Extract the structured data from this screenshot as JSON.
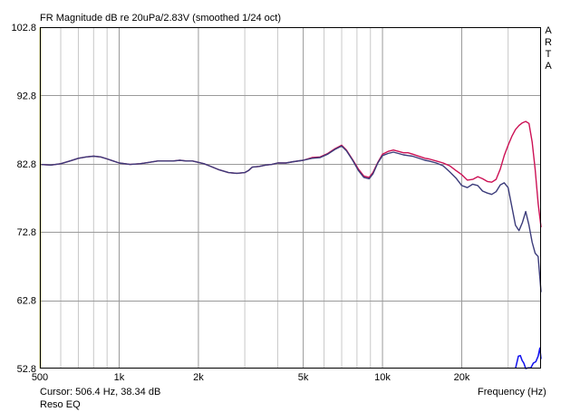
{
  "header": {
    "title": "FR Magnitude dB re 20uPa/2.83V (smoothed 1/24 oct)",
    "brand_letters": [
      "A",
      "R",
      "T",
      "A"
    ]
  },
  "footer": {
    "cursor_readout": "Cursor: 506.4 Hz, 38.34 dB",
    "note": "Reso EQ",
    "xlabel": "Frequency (Hz)"
  },
  "colors": {
    "background": "#ffffff",
    "grid": "#c8c8c8",
    "axis": "#000000",
    "series_red": "#cc1155",
    "series_navy": "#3b3b7a",
    "series_blue": "#1010ee",
    "left_edge": "#c8c800"
  },
  "chart_data": {
    "type": "line",
    "title": "FR Magnitude dB re 20uPa/2.83V (smoothed 1/24 oct)",
    "xlabel": "Frequency (Hz)",
    "ylabel": "",
    "x_scale": "log",
    "xlim": [
      500,
      40000
    ],
    "ylim": [
      52.8,
      102.8
    ],
    "grid": true,
    "x_ticks": [
      {
        "value": 500,
        "label": "500"
      },
      {
        "value": 1000,
        "label": "1k"
      },
      {
        "value": 2000,
        "label": "2k"
      },
      {
        "value": 5000,
        "label": "5k"
      },
      {
        "value": 10000,
        "label": "10k"
      },
      {
        "value": 20000,
        "label": "20k"
      }
    ],
    "y_ticks": [
      {
        "value": 102.8,
        "label": "102.8"
      },
      {
        "value": 92.8,
        "label": "92.8"
      },
      {
        "value": 82.8,
        "label": "82.8"
      },
      {
        "value": 72.8,
        "label": "72.8"
      },
      {
        "value": 62.8,
        "label": "62.8"
      },
      {
        "value": 52.8,
        "label": "52.8"
      }
    ],
    "series": [
      {
        "color": "#cc1155",
        "x": [
          500,
          550,
          600,
          650,
          700,
          750,
          800,
          850,
          900,
          950,
          1000,
          1100,
          1200,
          1300,
          1400,
          1500,
          1600,
          1700,
          1800,
          1900,
          2000,
          2100,
          2200,
          2400,
          2600,
          2800,
          3000,
          3100,
          3200,
          3400,
          3600,
          3800,
          4000,
          4300,
          4600,
          5000,
          5400,
          5800,
          6200,
          6600,
          7000,
          7300,
          7700,
          8100,
          8500,
          8900,
          9200,
          9600,
          10000,
          10500,
          11000,
          11500,
          12000,
          12500,
          13000,
          13500,
          14000,
          14500,
          15000,
          16000,
          17000,
          18000,
          19000,
          20000,
          21000,
          22000,
          23000,
          24000,
          25000,
          26000,
          27000,
          28000,
          29000,
          30000,
          31000,
          32000,
          33000,
          34000,
          35000,
          36000,
          37000,
          38000,
          39000,
          40000
        ],
        "y": [
          82.7,
          82.6,
          82.8,
          83.2,
          83.6,
          83.8,
          83.9,
          83.8,
          83.5,
          83.2,
          82.9,
          82.7,
          82.8,
          83.0,
          83.2,
          83.2,
          83.2,
          83.3,
          83.2,
          83.2,
          83.0,
          82.8,
          82.5,
          81.9,
          81.5,
          81.4,
          81.5,
          81.8,
          82.3,
          82.4,
          82.6,
          82.7,
          82.9,
          82.9,
          83.1,
          83.3,
          83.7,
          83.8,
          84.3,
          85.0,
          85.5,
          84.8,
          83.4,
          82.0,
          81.0,
          80.8,
          81.5,
          83.0,
          84.2,
          84.6,
          84.8,
          84.6,
          84.4,
          84.4,
          84.2,
          84.0,
          83.8,
          83.6,
          83.5,
          83.2,
          82.9,
          82.5,
          81.8,
          81.2,
          80.4,
          80.5,
          80.9,
          80.6,
          80.2,
          80.1,
          80.5,
          82.0,
          84.0,
          85.5,
          86.8,
          87.8,
          88.4,
          88.8,
          89.0,
          88.7,
          86.0,
          82.0,
          77.0,
          73.5
        ]
      },
      {
        "color": "#3b3b7a",
        "x": [
          500,
          550,
          600,
          650,
          700,
          750,
          800,
          850,
          900,
          950,
          1000,
          1100,
          1200,
          1300,
          1400,
          1500,
          1600,
          1700,
          1800,
          1900,
          2000,
          2100,
          2200,
          2400,
          2600,
          2800,
          3000,
          3100,
          3200,
          3400,
          3600,
          3800,
          4000,
          4300,
          4600,
          5000,
          5400,
          5800,
          6200,
          6600,
          7000,
          7300,
          7700,
          8100,
          8500,
          8900,
          9200,
          9600,
          10000,
          10500,
          11000,
          11500,
          12000,
          12500,
          13000,
          13500,
          14000,
          14500,
          15000,
          16000,
          17000,
          18000,
          19000,
          20000,
          21000,
          22000,
          23000,
          24000,
          25000,
          26000,
          27000,
          28000,
          29000,
          30000,
          31000,
          32000,
          33000,
          34000,
          35000,
          36000,
          37000,
          38000,
          39000,
          40000
        ],
        "y": [
          82.7,
          82.6,
          82.8,
          83.2,
          83.6,
          83.8,
          83.9,
          83.8,
          83.5,
          83.2,
          82.9,
          82.7,
          82.8,
          83.0,
          83.2,
          83.2,
          83.2,
          83.3,
          83.2,
          83.2,
          83.0,
          82.8,
          82.5,
          81.9,
          81.5,
          81.4,
          81.5,
          81.8,
          82.3,
          82.4,
          82.6,
          82.7,
          82.9,
          82.9,
          83.1,
          83.3,
          83.6,
          83.7,
          84.2,
          84.9,
          85.4,
          84.7,
          83.3,
          81.8,
          80.8,
          80.6,
          81.3,
          82.9,
          84.0,
          84.3,
          84.5,
          84.3,
          84.1,
          84.0,
          83.9,
          83.7,
          83.5,
          83.3,
          83.2,
          82.9,
          82.5,
          81.6,
          80.7,
          79.6,
          79.3,
          79.8,
          79.6,
          78.8,
          78.5,
          78.3,
          78.7,
          79.7,
          80.0,
          79.3,
          76.5,
          73.8,
          73.0,
          74.2,
          75.8,
          73.8,
          71.3,
          69.7,
          69.2,
          64.0
        ]
      },
      {
        "color": "#1010ee",
        "x": [
          32000,
          32800,
          33400,
          33900,
          34400,
          35000,
          35800,
          36600,
          37400,
          38200,
          39000,
          39600,
          40000
        ],
        "y": [
          52.8,
          54.6,
          54.7,
          54.0,
          53.6,
          52.8,
          52.9,
          52.9,
          53.6,
          53.8,
          54.6,
          55.8,
          54.2
        ]
      }
    ]
  }
}
